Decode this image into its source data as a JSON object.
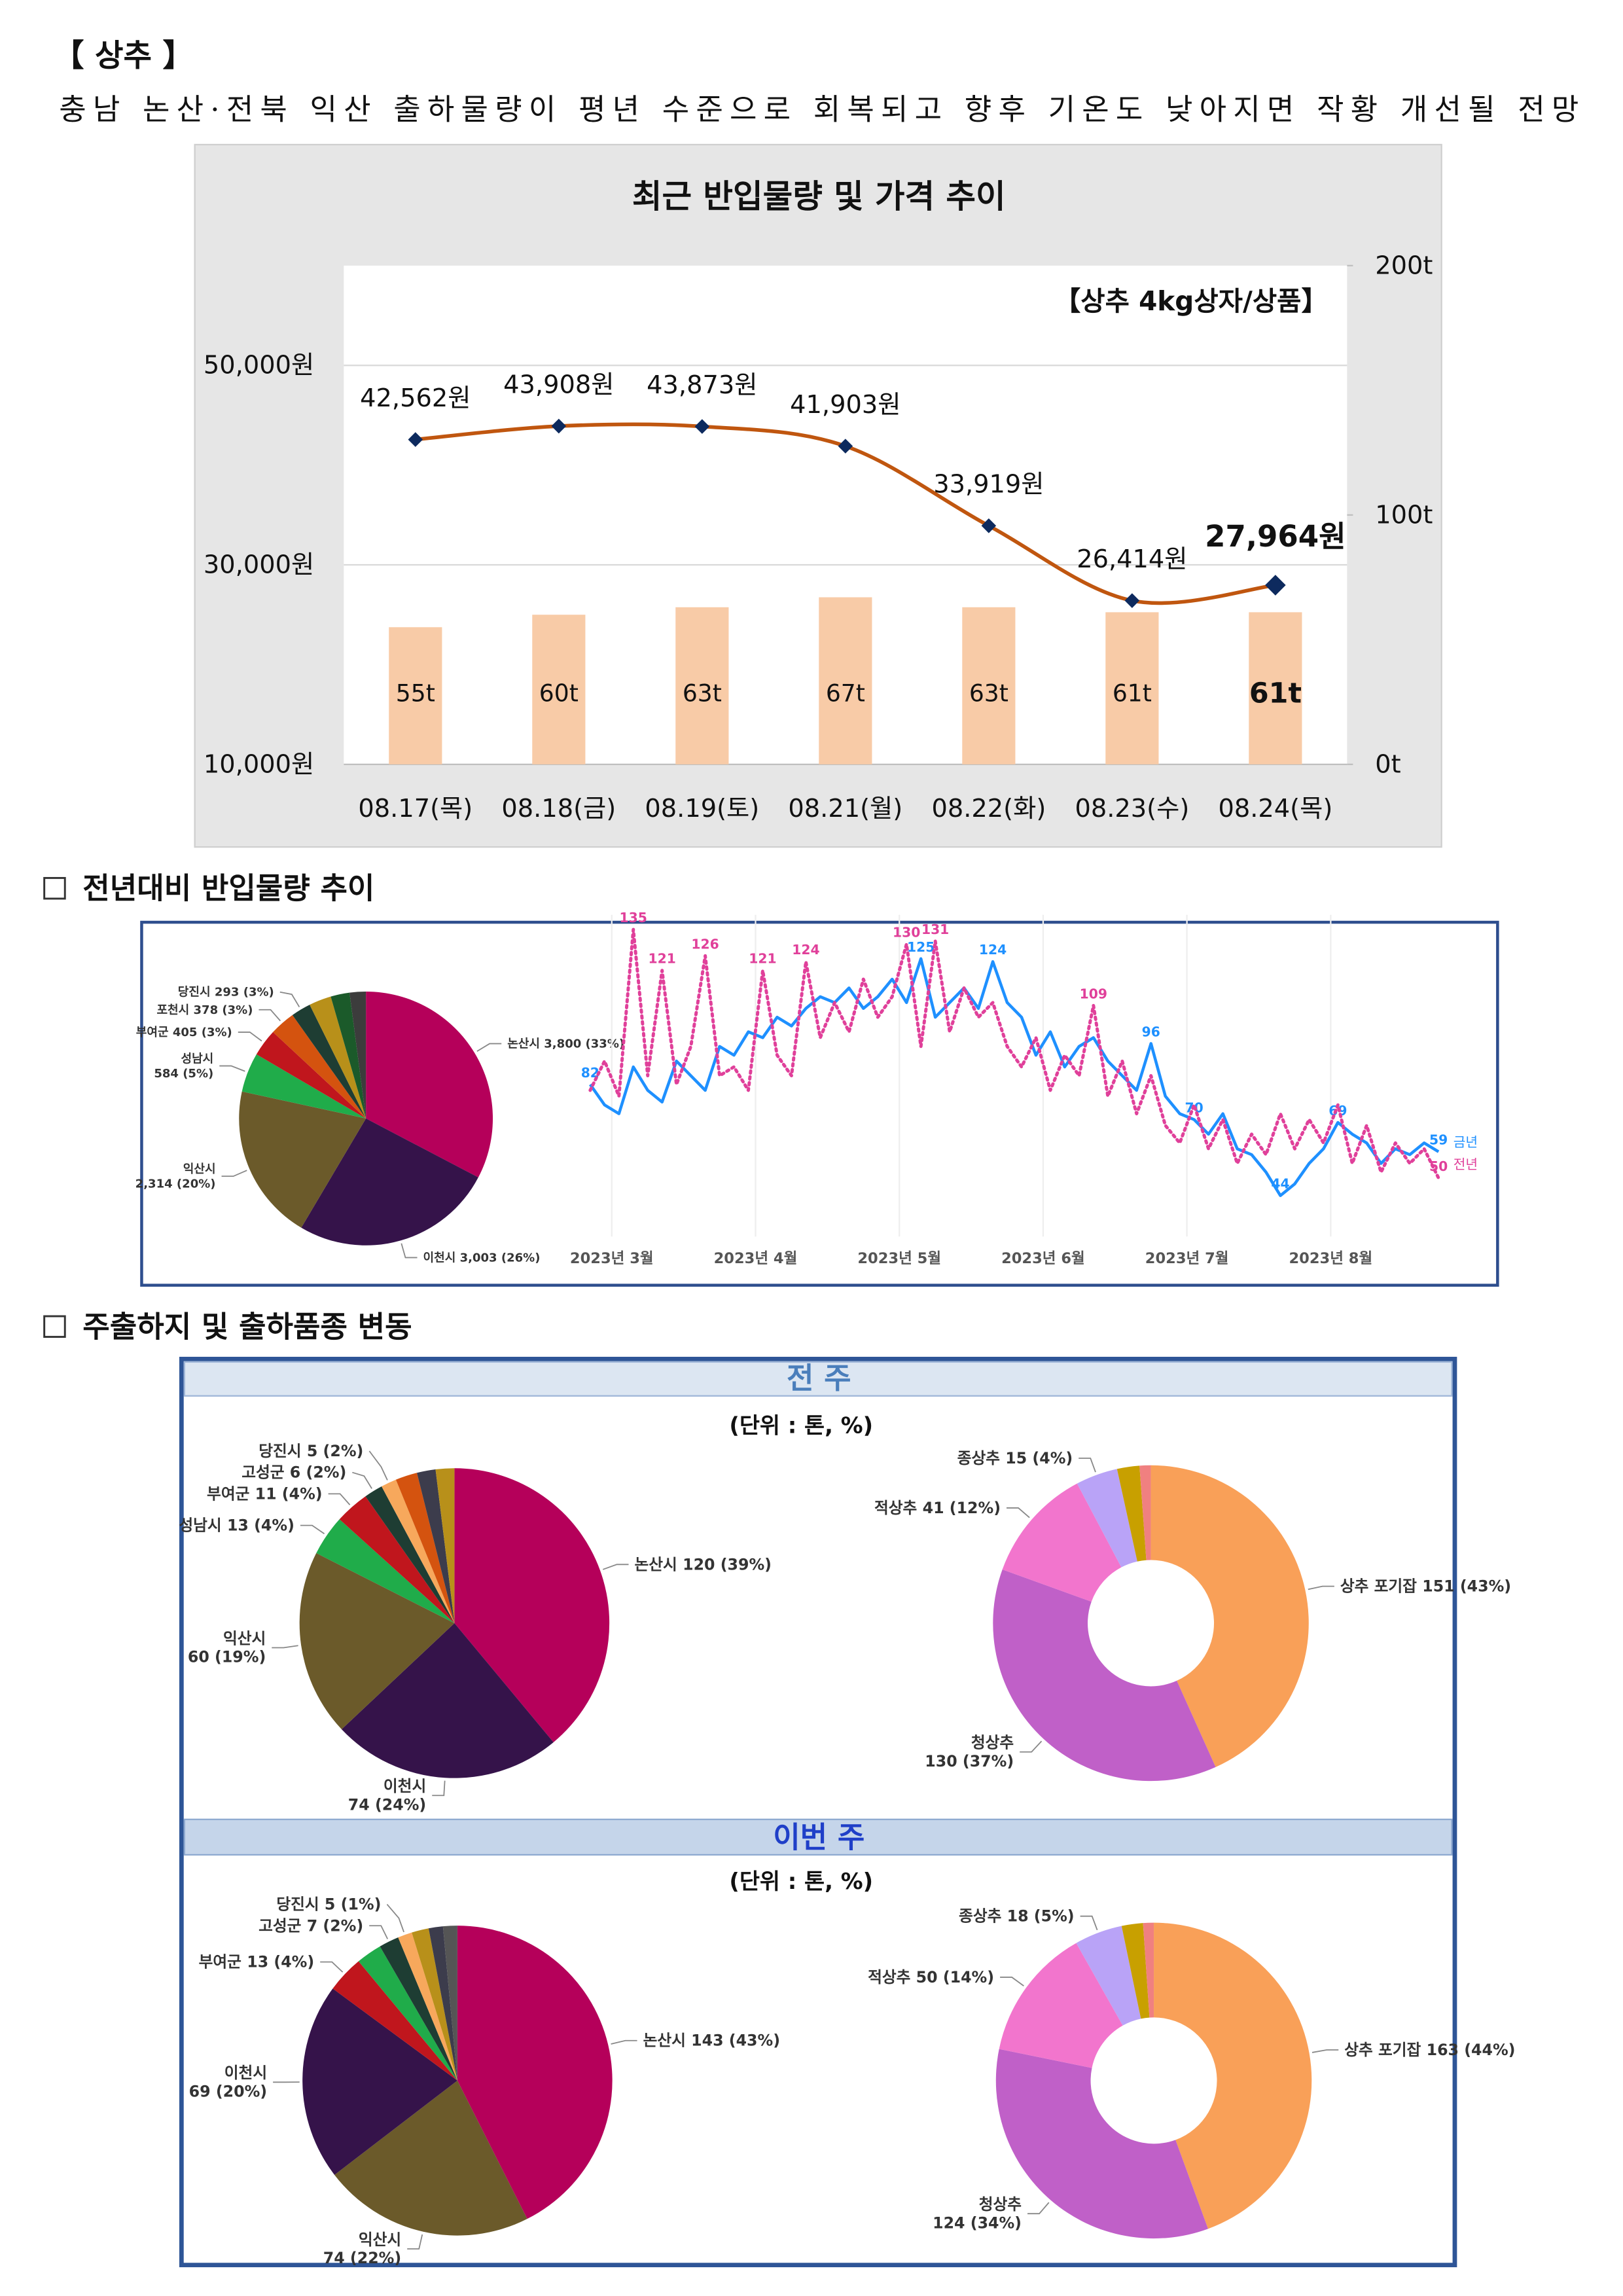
{
  "header": {
    "title": "【 상추 】",
    "subtitle": "충남 논산·전북 익산 출하물량이 평년 수준으로 회복되고 향후 기온도 낮아지면 작황 개선될 전망"
  },
  "sections": [
    {
      "title": "전년대비 반입물량 추이"
    },
    {
      "title": "주출하지 및 출하품종 변동"
    }
  ],
  "panels": [
    {
      "title": "전 주",
      "unit": "(단위 : 톤, %)"
    },
    {
      "title": "이번 주",
      "unit": "(단위 : 톤, %)"
    }
  ],
  "chart_data": [
    {
      "type": "combo",
      "title": "최근 반입물량 및 가격 추이",
      "annotation": "【상추 4kg상자/상품】",
      "categories": [
        "08.17(목)",
        "08.18(금)",
        "08.19(토)",
        "08.21(월)",
        "08.22(화)",
        "08.23(수)",
        "08.24(목)"
      ],
      "series": [
        {
          "type": "bar",
          "axis": "y2",
          "color": "#f8cba7",
          "values": [
            55,
            60,
            63,
            67,
            63,
            61,
            61
          ],
          "value_labels": [
            "55t",
            "60t",
            "63t",
            "67t",
            "63t",
            "61t",
            "61t"
          ]
        },
        {
          "type": "line",
          "color": "#c0560f",
          "marker_color": "#0d2a5e",
          "values": [
            42562,
            43908,
            43873,
            41903,
            33919,
            26414,
            27964
          ],
          "value_labels": [
            "42,562원",
            "43,908원",
            "43,873원",
            "41,903원",
            "33,919원",
            "26,414원",
            "27,964원"
          ]
        }
      ],
      "ylim": [
        10000,
        60000
      ],
      "yticks": [
        {
          "value": 10000,
          "label": "10,000원"
        },
        {
          "value": 30000,
          "label": "30,000원"
        },
        {
          "value": 50000,
          "label": "50,000원"
        }
      ],
      "y2lim": [
        0,
        200
      ],
      "y2ticks": [
        {
          "value": 0,
          "label": "0t"
        },
        {
          "value": 100,
          "label": "100t"
        },
        {
          "value": 200,
          "label": "200t"
        }
      ],
      "grid": true
    },
    {
      "type": "pie",
      "categories": [
        "논산시",
        "이천시",
        "익산시",
        "성남시",
        "부여군",
        "포천시",
        "당진시",
        null,
        null,
        null
      ],
      "values": [
        3800,
        3003,
        2314,
        584,
        405,
        378,
        293,
        330,
        280,
        240
      ],
      "value_labels": [
        "3,800 (33%)",
        "3,003 (26%)",
        "2,314 (20%)",
        "584 (5%)",
        "405 (3%)",
        "378 (3%)",
        "293 (3%)",
        null,
        null,
        null
      ],
      "colors": [
        "#b5005a",
        "#35134a",
        "#6b5a2a",
        "#20ac4a",
        "#c0161d",
        "#d4530f",
        "#1e3d33",
        "#b8901a",
        "#1b5a2a",
        "#3c3c3c"
      ]
    },
    {
      "type": "line",
      "x": [
        0,
        1,
        2,
        3,
        4,
        5,
        6,
        7,
        8,
        9,
        10,
        11,
        12,
        13,
        14,
        15,
        16,
        17,
        18,
        19,
        20,
        21,
        22,
        23,
        24,
        25,
        26,
        27,
        28,
        29,
        30,
        31,
        32,
        33,
        34,
        35,
        36,
        37,
        38,
        39,
        40,
        41,
        42,
        43,
        44,
        45,
        46,
        47,
        48,
        49,
        50,
        51,
        52,
        53,
        54,
        55,
        56,
        57,
        58,
        59
      ],
      "xlim": [
        0,
        59
      ],
      "ylim": [
        30,
        140
      ],
      "xticks": [
        {
          "value": 1.5,
          "label": "2023년 3월"
        },
        {
          "value": 11.5,
          "label": "2023년 4월"
        },
        {
          "value": 21.5,
          "label": "2023년 5월"
        },
        {
          "value": 31.5,
          "label": "2023년 6월"
        },
        {
          "value": 41.5,
          "label": "2023년 7월"
        },
        {
          "value": 51.5,
          "label": "2023년 8월"
        }
      ],
      "legend": "right",
      "series": [
        {
          "name": "금년",
          "color": "#1e90ff",
          "style": "solid",
          "values": [
            82,
            75,
            72,
            88,
            80,
            76,
            90,
            85,
            80,
            95,
            92,
            100,
            98,
            105,
            102,
            108,
            112,
            110,
            115,
            108,
            112,
            118,
            110,
            125,
            105,
            110,
            115,
            108,
            124,
            110,
            105,
            92,
            100,
            88,
            95,
            98,
            90,
            85,
            80,
            96,
            78,
            72,
            70,
            65,
            72,
            60,
            58,
            52,
            44,
            48,
            55,
            60,
            69,
            65,
            62,
            55,
            60,
            58,
            62,
            59
          ],
          "value_labels": [
            "82",
            null,
            null,
            null,
            null,
            null,
            null,
            null,
            null,
            null,
            null,
            null,
            null,
            null,
            null,
            null,
            null,
            null,
            null,
            null,
            null,
            null,
            null,
            "125",
            null,
            null,
            null,
            null,
            "124",
            null,
            null,
            null,
            null,
            null,
            null,
            null,
            null,
            null,
            null,
            "96",
            null,
            null,
            "70",
            null,
            null,
            null,
            null,
            null,
            "44",
            null,
            null,
            null,
            "69",
            null,
            null,
            null,
            null,
            null,
            null,
            "59"
          ]
        },
        {
          "name": "전년",
          "color": "#e0409a",
          "style": "dotted",
          "values": [
            80,
            90,
            78,
            135,
            85,
            121,
            82,
            95,
            126,
            85,
            88,
            80,
            121,
            92,
            85,
            124,
            98,
            110,
            100,
            118,
            105,
            112,
            130,
            95,
            131,
            100,
            115,
            105,
            110,
            95,
            88,
            98,
            80,
            92,
            85,
            109,
            78,
            90,
            72,
            85,
            68,
            62,
            75,
            60,
            70,
            55,
            65,
            58,
            72,
            60,
            70,
            62,
            75,
            55,
            68,
            52,
            62,
            55,
            60,
            50
          ],
          "value_labels": [
            null,
            null,
            null,
            "135",
            null,
            "121",
            null,
            null,
            "126",
            null,
            null,
            null,
            "121",
            null,
            null,
            "124",
            null,
            null,
            null,
            null,
            null,
            null,
            "130",
            null,
            "131",
            null,
            null,
            null,
            null,
            null,
            null,
            null,
            null,
            null,
            null,
            "109",
            null,
            null,
            null,
            null,
            null,
            null,
            null,
            null,
            null,
            null,
            null,
            null,
            null,
            null,
            null,
            null,
            null,
            null,
            null,
            null,
            null,
            null,
            null,
            "50"
          ]
        }
      ]
    },
    {
      "type": "pie",
      "categories": [
        "논산시",
        "이천시",
        "익산시",
        "성남시",
        "부여군",
        "고성군",
        "당진시",
        null,
        null,
        null
      ],
      "values": [
        120,
        74,
        60,
        13,
        11,
        6,
        5,
        7,
        6,
        6
      ],
      "value_labels": [
        "120 (39%)",
        "74 (24%)",
        "60 (19%)",
        "13 (4%)",
        "11 (4%)",
        "6 (2%)",
        "5 (2%)",
        null,
        null,
        null
      ],
      "colors": [
        "#b5005a",
        "#35134a",
        "#6b5a2a",
        "#20ac4a",
        "#c0161d",
        "#1e3d33",
        "#f7a85c",
        "#d4530f",
        "#3c3c4c",
        "#b8901a"
      ]
    },
    {
      "type": "donut",
      "categories": [
        "상추 포기잡",
        "청상추",
        "적상추",
        "종상추",
        null,
        null
      ],
      "values": [
        151,
        130,
        41,
        15,
        8,
        4
      ],
      "value_labels": [
        "151 (43%)",
        "130 (37%)",
        "41 (12%)",
        "15 (4%)",
        null,
        null
      ],
      "colors": [
        "#f9a058",
        "#c060c8",
        "#f275cd",
        "#b9a3f7",
        "#c8a000",
        "#f08080"
      ]
    },
    {
      "type": "pie",
      "categories": [
        "논산시",
        "익산시",
        "이천시",
        "부여군",
        null,
        "고성군",
        "당진시",
        null,
        null,
        null
      ],
      "values": [
        143,
        74,
        69,
        13,
        9,
        7,
        5,
        6,
        5,
        5
      ],
      "value_labels": [
        "143 (43%)",
        "74 (22%)",
        "69 (20%)",
        "13 (4%)",
        null,
        "7 (2%)",
        "5 (1%)",
        null,
        null,
        null
      ],
      "colors": [
        "#b5005a",
        "#6b5a2a",
        "#35134a",
        "#c0161d",
        "#20ac4a",
        "#1e3d33",
        "#f7a85c",
        "#b8901a",
        "#3c3c4c",
        "#555555"
      ]
    },
    {
      "type": "donut",
      "categories": [
        "상추 포기잡",
        "청상추",
        "적상추",
        "종상추",
        null,
        null
      ],
      "values": [
        163,
        124,
        50,
        18,
        8,
        4
      ],
      "value_labels": [
        "163 (44%)",
        "124 (34%)",
        "50 (14%)",
        "18 (5%)",
        null,
        null
      ],
      "colors": [
        "#f9a058",
        "#c060c8",
        "#f275cd",
        "#b9a3f7",
        "#c8a000",
        "#f08080"
      ]
    }
  ]
}
